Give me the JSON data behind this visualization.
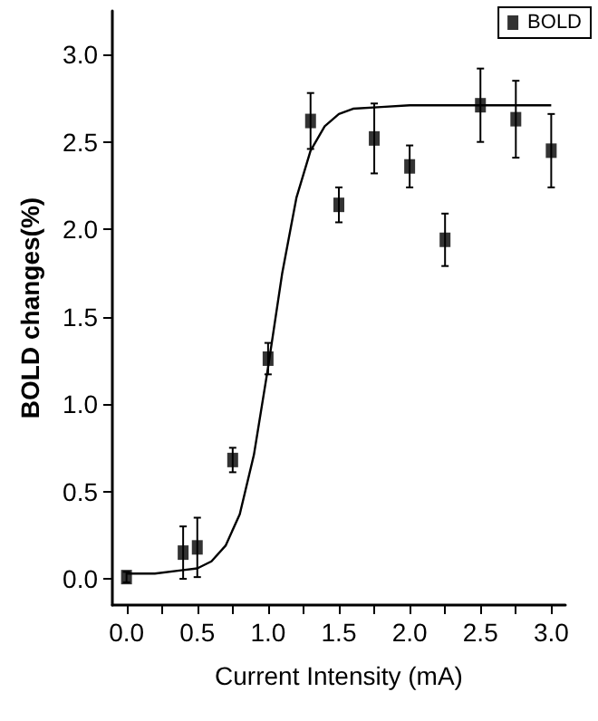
{
  "chart_data": {
    "type": "scatter",
    "xlabel": "Current Intensity (mA)",
    "ylabel": "BOLD changes(%)",
    "xlim": [
      -0.1,
      3.1
    ],
    "ylim": [
      -0.15,
      3.25
    ],
    "xticks": [
      {
        "value": 0,
        "label": "0.0"
      },
      {
        "value": 0.25,
        "label": null
      },
      0.5,
      {
        "value": 0.75,
        "label": null
      },
      {
        "value": 1,
        "label": "1.0"
      },
      {
        "value": 1.25,
        "label": null
      },
      1.5,
      {
        "value": 1.75,
        "label": null
      },
      {
        "value": 2,
        "label": "2.0"
      },
      {
        "value": 2.25,
        "label": null
      },
      2.5,
      {
        "value": 2.75,
        "label": null
      },
      {
        "value": 3,
        "label": "3.0"
      }
    ],
    "yticks": [
      {
        "value": 0,
        "label": "0.0"
      },
      0.5,
      {
        "value": 1,
        "label": "1.0"
      },
      1.5,
      {
        "value": 2,
        "label": "2.0"
      },
      2.5,
      {
        "value": 3,
        "label": "3.0"
      }
    ],
    "grid": false,
    "legend": "top right",
    "marker": "square",
    "series": [
      {
        "name": "BOLD",
        "color": "#000000",
        "x": [
          0,
          0.4,
          0.5,
          0.75,
          1,
          1.3,
          1.5,
          1.75,
          2,
          2.25,
          2.5,
          2.75,
          3
        ],
        "values": [
          0.01,
          0.15,
          0.18,
          0.68,
          1.26,
          2.62,
          2.14,
          2.52,
          2.36,
          1.94,
          2.71,
          2.63,
          2.45
        ],
        "errors": [
          0.03,
          0.15,
          0.17,
          0.07,
          0.09,
          0.16,
          0.1,
          0.2,
          0.12,
          0.15,
          0.21,
          0.22,
          0.21
        ]
      },
      {
        "type": "line",
        "color": "#000000",
        "marker": "none",
        "x": [
          0,
          0.2,
          0.4,
          0.5,
          0.6,
          0.7,
          0.8,
          0.9,
          1,
          1.1,
          1.2,
          1.3,
          1.4,
          1.5,
          1.6,
          1.8,
          2,
          2.5,
          3
        ],
        "values": [
          0.03,
          0.03,
          0.05,
          0.06,
          0.1,
          0.19,
          0.37,
          0.71,
          1.21,
          1.75,
          2.18,
          2.45,
          2.59,
          2.66,
          2.69,
          2.7,
          2.71,
          2.71,
          2.71
        ]
      }
    ]
  }
}
